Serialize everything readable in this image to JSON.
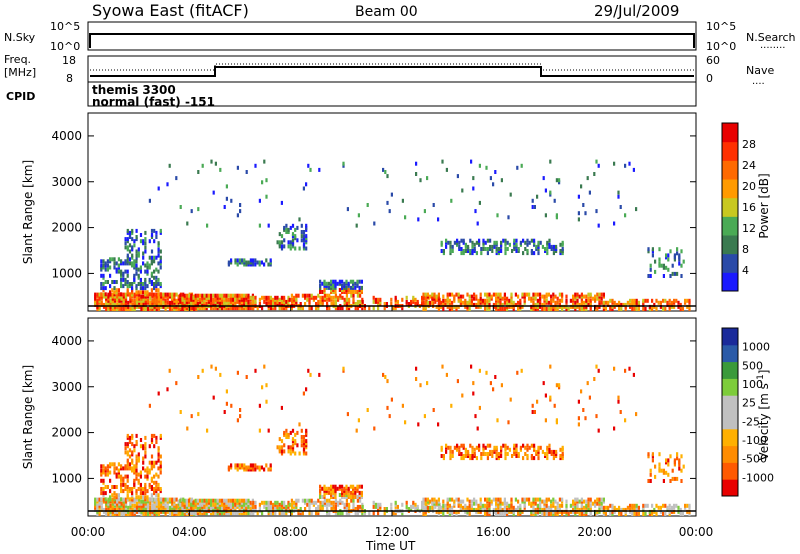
{
  "header": {
    "title": "Syowa East (fitACF)",
    "beam": "Beam 00",
    "date": "29/Jul/2009"
  },
  "sky_panel": {
    "left_label": "N.Sky",
    "left_ticks": [
      "10^5",
      "10^0"
    ],
    "right_ticks": [
      "10^5",
      "10^0"
    ],
    "right_label": "N.Search",
    "right_legend": "........"
  },
  "freq_panel": {
    "left_label_1": "Freq.",
    "left_label_2": "[MHz]",
    "left_ticks": [
      "18",
      "8"
    ],
    "right_ticks": [
      "60",
      "0"
    ],
    "right_label": "Nave",
    "right_legend": "...."
  },
  "cpid": {
    "label": "CPID",
    "line1": "themis 3300",
    "line2": "normal (fast) -151"
  },
  "colors": {
    "power_scale": [
      "#1a1aff",
      "#2a4aa8",
      "#3a7a50",
      "#4aaa55",
      "#c8c820",
      "#ff9a00",
      "#ff6a00",
      "#ff3000",
      "#e80000"
    ],
    "velocity_scale": [
      "#e80000",
      "#ff5a00",
      "#ff8c00",
      "#ffb000",
      "#c0c0c0",
      "#c0c0c0",
      "#7dcc3a",
      "#3a9a3a",
      "#2a5aa8",
      "#1a2a9a"
    ]
  },
  "chart_data": [
    {
      "type": "heatmap",
      "title": "",
      "xlabel": "",
      "ylabel": "Slant Range [km]",
      "x_ticks": [
        "00:00",
        "04:00",
        "08:00",
        "12:00",
        "16:00",
        "20:00",
        "00:00"
      ],
      "y_ticks": [
        "1000",
        "2000",
        "3000",
        "4000"
      ],
      "ylim": [
        180,
        4500
      ],
      "colorbar_label": "Power [dB]",
      "colorbar_ticks": [
        "4",
        "8",
        "12",
        "16",
        "20",
        "24",
        "28"
      ],
      "colorbar_range": [
        0,
        30
      ]
    },
    {
      "type": "heatmap",
      "title": "",
      "xlabel": "Time UT",
      "ylabel": "Slant Range [km]",
      "x_ticks": [
        "00:00",
        "04:00",
        "08:00",
        "12:00",
        "16:00",
        "20:00",
        "00:00"
      ],
      "y_ticks": [
        "1000",
        "2000",
        "3000",
        "4000"
      ],
      "ylim": [
        180,
        4500
      ],
      "colorbar_label": "Velocity [m s^-1]",
      "colorbar_ticks": [
        "1000",
        "500",
        "100",
        "25",
        "-25",
        "-100",
        "-500",
        "-1000"
      ]
    }
  ]
}
